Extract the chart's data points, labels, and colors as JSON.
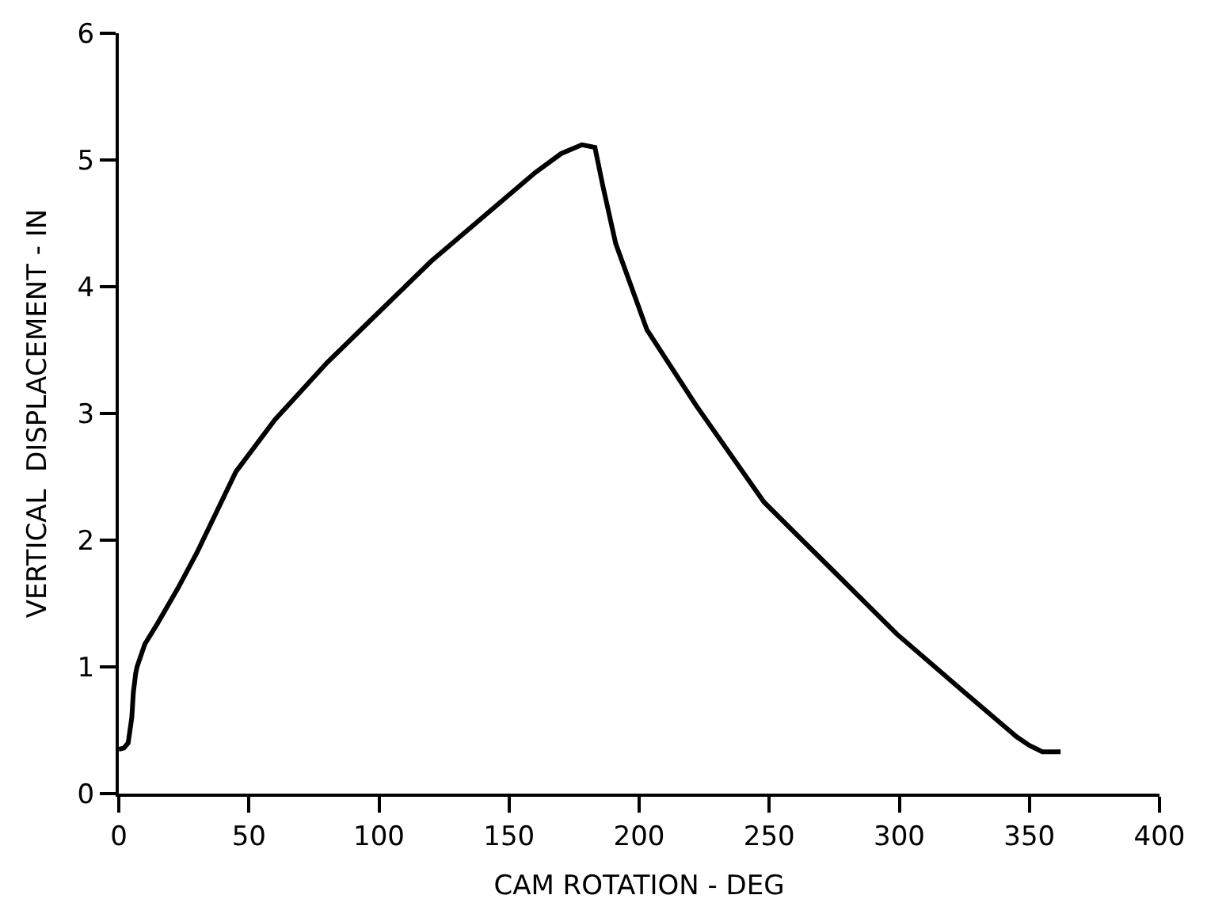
{
  "chart_data": {
    "type": "line",
    "xlabel": "CAM ROTATION - DEG",
    "ylabel": "VERTICAL  DISPLACEMENT - IN",
    "x": [
      0,
      2,
      3.6,
      5,
      5.6,
      6.5,
      7,
      10,
      14.8,
      22.7,
      30,
      45,
      60,
      80,
      100,
      120,
      140,
      160,
      170,
      178,
      183,
      186,
      191,
      203,
      222,
      248,
      275,
      299,
      325,
      345,
      350,
      355,
      362
    ],
    "series": [
      {
        "color": "#000000",
        "values": [
          0.35,
          0.36,
          0.4,
          0.6,
          0.8,
          0.95,
          1.0,
          1.18,
          1.34,
          1.62,
          1.9,
          2.54,
          2.95,
          3.4,
          3.8,
          4.2,
          4.55,
          4.9,
          5.05,
          5.12,
          5.1,
          4.8,
          4.34,
          3.66,
          3.06,
          2.3,
          1.75,
          1.26,
          0.8,
          0.45,
          0.38,
          0.33,
          0.33
        ]
      }
    ],
    "xlim": [
      0,
      400
    ],
    "xticks": [
      0,
      50,
      100,
      150,
      200,
      250,
      300,
      350,
      400
    ],
    "ylim": [
      0,
      6
    ],
    "yticks": [
      0,
      1,
      2,
      3,
      4,
      5,
      6
    ],
    "marker": "none",
    "line_style": "solid"
  }
}
